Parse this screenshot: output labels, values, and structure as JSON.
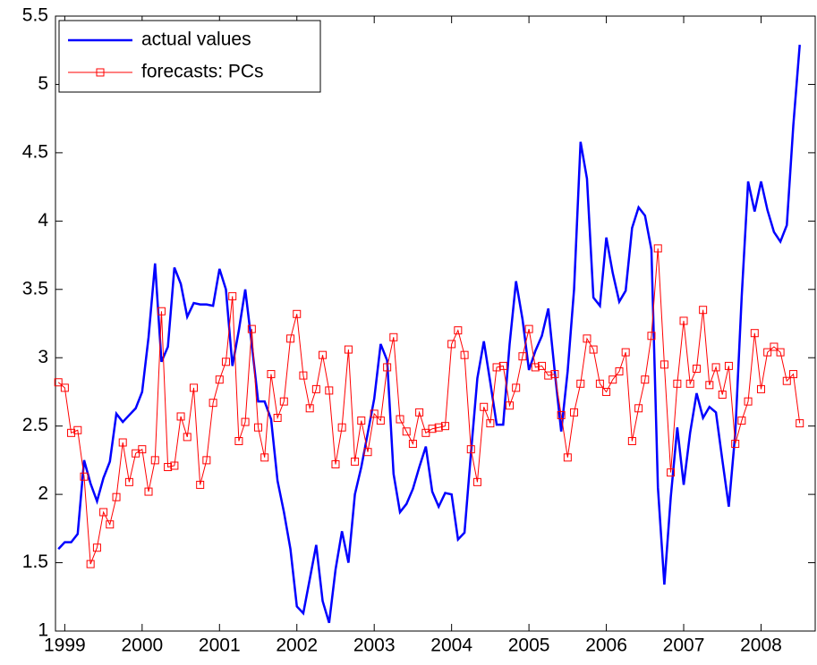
{
  "chart_data": {
    "type": "line",
    "x": [
      1998.917,
      1999.0,
      1999.083,
      1999.167,
      1999.25,
      1999.333,
      1999.417,
      1999.5,
      1999.583,
      1999.667,
      1999.75,
      1999.833,
      1999.917,
      2000.0,
      2000.083,
      2000.167,
      2000.25,
      2000.333,
      2000.417,
      2000.5,
      2000.583,
      2000.667,
      2000.75,
      2000.833,
      2000.917,
      2001.0,
      2001.083,
      2001.167,
      2001.25,
      2001.333,
      2001.417,
      2001.5,
      2001.583,
      2001.667,
      2001.75,
      2001.833,
      2001.917,
      2002.0,
      2002.083,
      2002.167,
      2002.25,
      2002.333,
      2002.417,
      2002.5,
      2002.583,
      2002.667,
      2002.75,
      2002.833,
      2002.917,
      2003.0,
      2003.083,
      2003.167,
      2003.25,
      2003.333,
      2003.417,
      2003.5,
      2003.583,
      2003.667,
      2003.75,
      2003.833,
      2003.917,
      2004.0,
      2004.083,
      2004.167,
      2004.25,
      2004.333,
      2004.417,
      2004.5,
      2004.583,
      2004.667,
      2004.75,
      2004.833,
      2004.917,
      2005.0,
      2005.083,
      2005.167,
      2005.25,
      2005.333,
      2005.417,
      2005.5,
      2005.583,
      2005.667,
      2005.75,
      2005.833,
      2005.917,
      2006.0,
      2006.083,
      2006.167,
      2006.25,
      2006.333,
      2006.417,
      2006.5,
      2006.583,
      2006.667,
      2006.75,
      2006.833,
      2006.917,
      2007.0,
      2007.083,
      2007.167,
      2007.25,
      2007.333,
      2007.417,
      2007.5,
      2007.583,
      2007.667,
      2007.75,
      2007.833,
      2007.917,
      2008.0,
      2008.083,
      2008.167,
      2008.25,
      2008.333,
      2008.417,
      2008.5
    ],
    "series": [
      {
        "name": "actual values",
        "color": "#0000ff",
        "marker": "none",
        "values": [
          1.6,
          1.65,
          1.65,
          1.71,
          2.25,
          2.08,
          1.95,
          2.12,
          2.24,
          2.59,
          2.53,
          2.58,
          2.63,
          2.75,
          3.15,
          3.69,
          2.97,
          3.08,
          3.66,
          3.54,
          3.3,
          3.4,
          3.39,
          3.39,
          3.38,
          3.65,
          3.5,
          2.94,
          3.2,
          3.5,
          3.1,
          2.68,
          2.68,
          2.55,
          2.1,
          1.87,
          1.6,
          1.18,
          1.13,
          1.38,
          1.63,
          1.22,
          1.06,
          1.45,
          1.73,
          1.5,
          2.0,
          2.2,
          2.45,
          2.7,
          3.1,
          2.98,
          2.15,
          1.87,
          1.93,
          2.04,
          2.2,
          2.35,
          2.02,
          1.91,
          2.01,
          2.0,
          1.67,
          1.72,
          2.3,
          2.85,
          3.12,
          2.82,
          2.51,
          2.51,
          3.1,
          3.56,
          3.28,
          2.91,
          3.05,
          3.16,
          3.36,
          2.9,
          2.46,
          2.9,
          3.5,
          4.58,
          4.31,
          3.44,
          3.38,
          3.88,
          3.62,
          3.41,
          3.49,
          3.95,
          4.1,
          4.04,
          3.79,
          2.05,
          1.34,
          1.98,
          2.49,
          2.07,
          2.45,
          2.74,
          2.56,
          2.64,
          2.6,
          2.25,
          1.91,
          2.45,
          3.45,
          4.29,
          4.07,
          4.29,
          4.08,
          3.92,
          3.85,
          3.97,
          4.7,
          5.29
        ]
      },
      {
        "name": "forecasts: PCs",
        "color": "#ff0000",
        "marker": "square",
        "values": [
          2.82,
          2.78,
          2.45,
          2.47,
          2.13,
          1.49,
          1.61,
          1.87,
          1.78,
          1.98,
          2.38,
          2.09,
          2.3,
          2.33,
          2.02,
          2.25,
          3.34,
          2.2,
          2.21,
          2.57,
          2.42,
          2.78,
          2.07,
          2.25,
          2.67,
          2.84,
          2.97,
          3.45,
          2.39,
          2.53,
          3.21,
          2.49,
          2.27,
          2.88,
          2.56,
          2.68,
          3.14,
          3.32,
          2.87,
          2.63,
          2.77,
          3.02,
          2.76,
          2.22,
          2.49,
          3.06,
          2.24,
          2.54,
          2.31,
          2.59,
          2.54,
          2.93,
          3.15,
          2.55,
          2.46,
          2.37,
          2.6,
          2.45,
          2.48,
          2.49,
          2.5,
          3.1,
          3.2,
          3.02,
          2.33,
          2.09,
          2.64,
          2.52,
          2.93,
          2.94,
          2.65,
          2.78,
          3.01,
          3.21,
          2.93,
          2.94,
          2.87,
          2.88,
          2.58,
          2.27,
          2.6,
          2.81,
          3.14,
          3.06,
          2.81,
          2.75,
          2.84,
          2.9,
          3.04,
          2.39,
          2.63,
          2.84,
          3.16,
          3.8,
          2.95,
          2.16,
          2.81,
          3.27,
          2.81,
          2.92,
          3.35,
          2.8,
          2.93,
          2.73,
          2.94,
          2.37,
          2.54,
          2.68,
          3.18,
          2.77,
          3.04,
          3.08,
          3.04,
          2.83,
          2.88,
          2.52
        ]
      }
    ],
    "xlim": [
      1998.88,
      2008.7
    ],
    "xticks": [
      1999,
      2000,
      2001,
      2002,
      2003,
      2004,
      2005,
      2006,
      2007,
      2008
    ],
    "ylim": [
      1,
      5.5
    ],
    "yticks": [
      1,
      1.5,
      2,
      2.5,
      3,
      3.5,
      4,
      4.5,
      5,
      5.5
    ],
    "legend": "upper left"
  }
}
